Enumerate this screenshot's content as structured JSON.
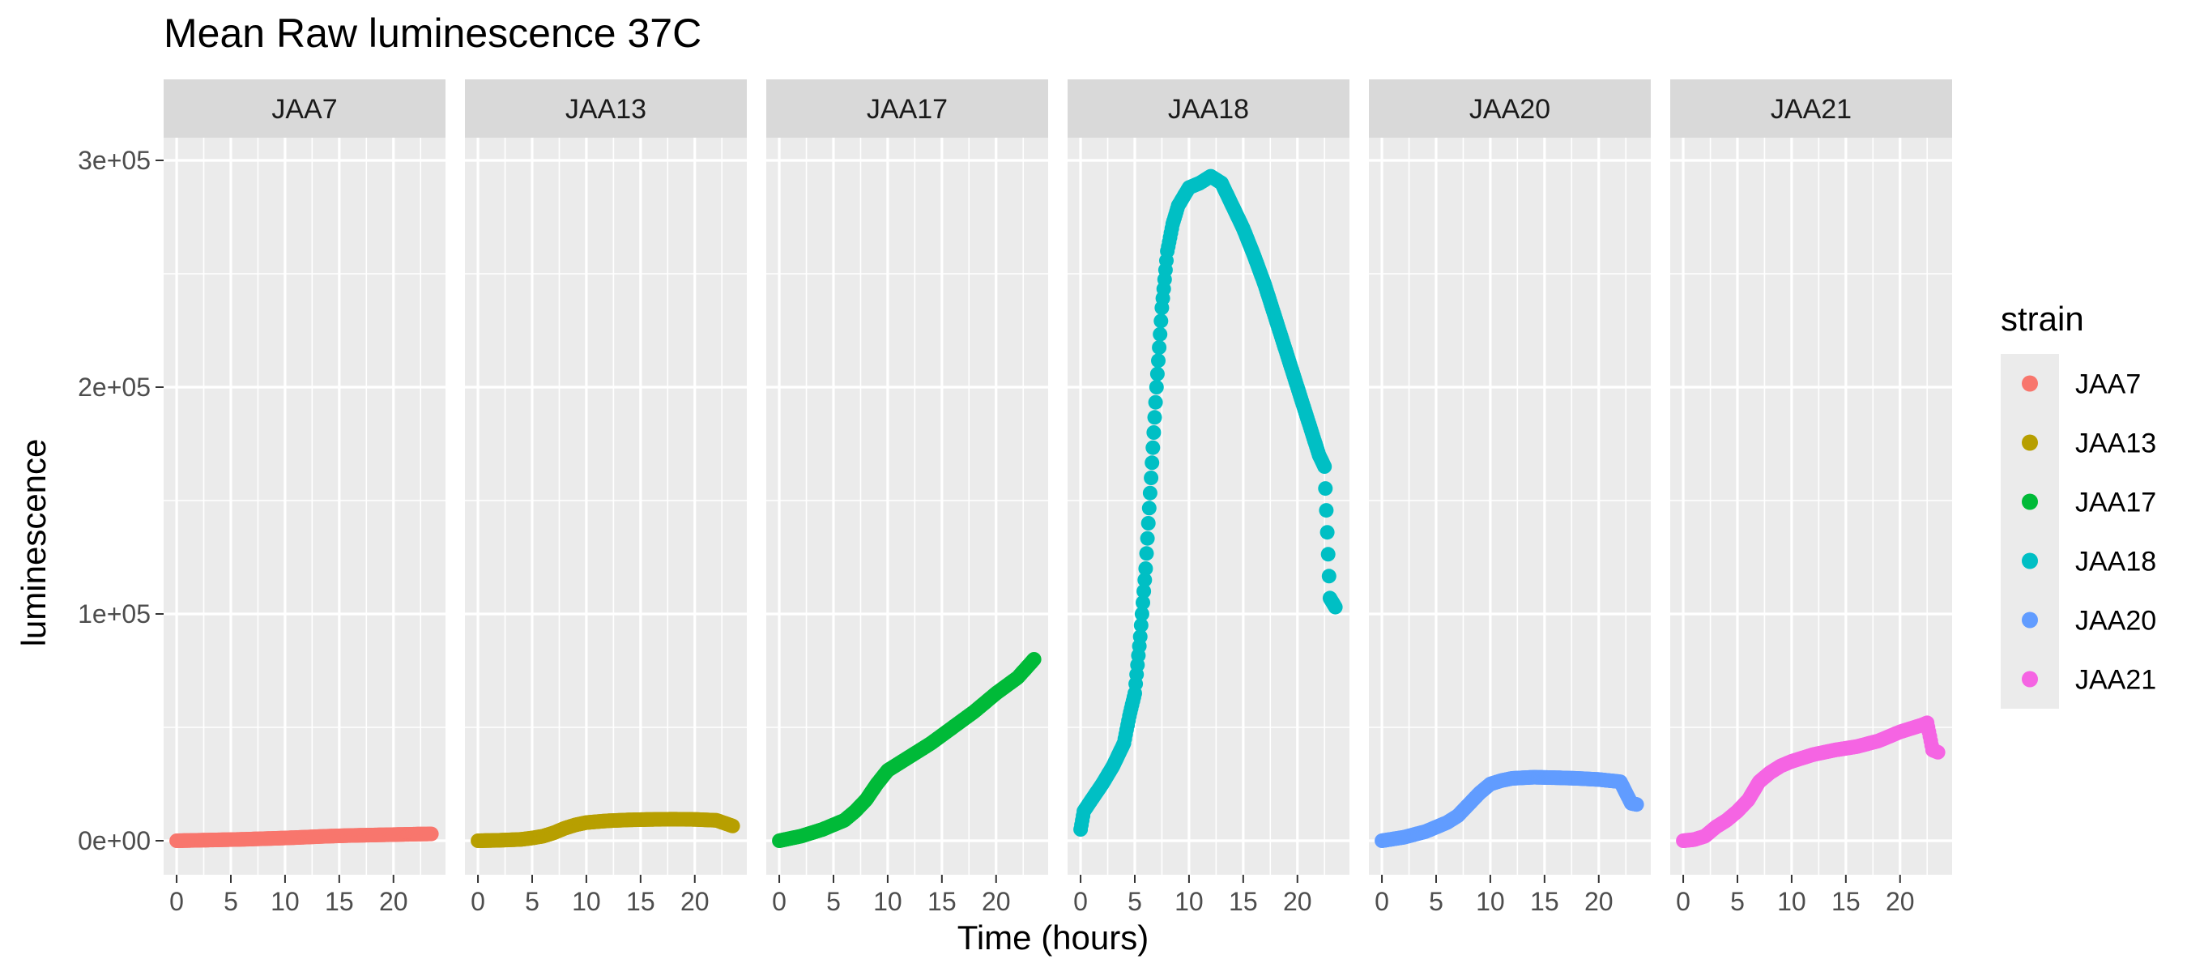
{
  "chart_data": {
    "type": "scatter",
    "title": "Mean Raw luminescence 37C",
    "xlabel": "Time (hours)",
    "ylabel": "luminescence",
    "xlim": [
      -1.2,
      24.8
    ],
    "ylim": [
      -15000,
      310000
    ],
    "x_ticks": [
      0,
      5,
      10,
      15,
      20
    ],
    "x_tick_labels": [
      "0",
      "5",
      "10",
      "15",
      "20"
    ],
    "y_ticks": [
      0,
      100000,
      200000,
      300000
    ],
    "y_tick_labels": [
      "0e+00",
      "1e+05",
      "2e+05",
      "3e+05"
    ],
    "grid": true,
    "legend": {
      "title": "strain",
      "position": "right"
    },
    "facets": [
      "JAA7",
      "JAA13",
      "JAA17",
      "JAA18",
      "JAA20",
      "JAA21"
    ],
    "series": [
      {
        "name": "JAA7",
        "color": "#F8766D",
        "points": [
          [
            0,
            0
          ],
          [
            2,
            200
          ],
          [
            4,
            400
          ],
          [
            6,
            600
          ],
          [
            8,
            900
          ],
          [
            10,
            1200
          ],
          [
            12,
            1600
          ],
          [
            14,
            2000
          ],
          [
            16,
            2300
          ],
          [
            18,
            2500
          ],
          [
            20,
            2700
          ],
          [
            22,
            2900
          ],
          [
            23.5,
            3000
          ]
        ]
      },
      {
        "name": "JAA13",
        "color": "#B79F00",
        "points": [
          [
            0,
            0
          ],
          [
            2,
            200
          ],
          [
            4,
            600
          ],
          [
            5,
            1200
          ],
          [
            6,
            2000
          ],
          [
            7,
            3500
          ],
          [
            8,
            5500
          ],
          [
            9,
            7000
          ],
          [
            10,
            8000
          ],
          [
            12,
            8800
          ],
          [
            14,
            9200
          ],
          [
            16,
            9400
          ],
          [
            18,
            9500
          ],
          [
            20,
            9400
          ],
          [
            22,
            9000
          ],
          [
            23.5,
            6500
          ]
        ]
      },
      {
        "name": "JAA17",
        "color": "#00BA38",
        "points": [
          [
            0,
            0
          ],
          [
            2,
            2000
          ],
          [
            4,
            5000
          ],
          [
            6,
            9000
          ],
          [
            7,
            13000
          ],
          [
            8,
            18000
          ],
          [
            9,
            25000
          ],
          [
            10,
            31000
          ],
          [
            12,
            37000
          ],
          [
            14,
            43000
          ],
          [
            16,
            50000
          ],
          [
            18,
            57000
          ],
          [
            20,
            65000
          ],
          [
            22,
            72000
          ],
          [
            23.5,
            80000
          ]
        ]
      },
      {
        "name": "JAA18",
        "color": "#00BFC4",
        "points": [
          [
            0,
            5000
          ],
          [
            0.3,
            13000
          ],
          [
            1,
            18000
          ],
          [
            2,
            25000
          ],
          [
            3,
            33000
          ],
          [
            4,
            43000
          ],
          [
            4.5,
            55000
          ],
          [
            5,
            65000
          ],
          [
            5.5,
            90000
          ],
          [
            6,
            120000
          ],
          [
            6.5,
            160000
          ],
          [
            7,
            200000
          ],
          [
            7.5,
            235000
          ],
          [
            8,
            260000
          ],
          [
            8.5,
            272000
          ],
          [
            9,
            280000
          ],
          [
            10,
            288000
          ],
          [
            11,
            290000
          ],
          [
            12,
            293000
          ],
          [
            13,
            290000
          ],
          [
            14,
            280000
          ],
          [
            15,
            270000
          ],
          [
            16,
            258000
          ],
          [
            17,
            245000
          ],
          [
            18,
            230000
          ],
          [
            19,
            215000
          ],
          [
            20,
            200000
          ],
          [
            21,
            185000
          ],
          [
            22,
            170000
          ],
          [
            22.5,
            165000
          ],
          [
            23,
            107000
          ],
          [
            23.5,
            103000
          ]
        ]
      },
      {
        "name": "JAA20",
        "color": "#619CFF",
        "points": [
          [
            0,
            0
          ],
          [
            2,
            1500
          ],
          [
            4,
            4000
          ],
          [
            6,
            8000
          ],
          [
            7,
            11000
          ],
          [
            8,
            16000
          ],
          [
            9,
            21000
          ],
          [
            10,
            25000
          ],
          [
            11,
            26500
          ],
          [
            12,
            27500
          ],
          [
            14,
            28000
          ],
          [
            16,
            27800
          ],
          [
            18,
            27500
          ],
          [
            20,
            27000
          ],
          [
            22,
            26000
          ],
          [
            23,
            16500
          ],
          [
            23.5,
            16000
          ]
        ]
      },
      {
        "name": "JAA21",
        "color": "#F564E3",
        "points": [
          [
            0,
            0
          ],
          [
            1,
            500
          ],
          [
            2,
            2000
          ],
          [
            3,
            6000
          ],
          [
            4,
            9000
          ],
          [
            5,
            13000
          ],
          [
            6,
            18000
          ],
          [
            7,
            26000
          ],
          [
            8,
            30000
          ],
          [
            9,
            33000
          ],
          [
            10,
            35000
          ],
          [
            12,
            38000
          ],
          [
            14,
            40000
          ],
          [
            16,
            41500
          ],
          [
            18,
            44000
          ],
          [
            20,
            48000
          ],
          [
            22,
            51000
          ],
          [
            22.5,
            52000
          ],
          [
            23,
            40000
          ],
          [
            23.5,
            39000
          ]
        ]
      }
    ]
  }
}
